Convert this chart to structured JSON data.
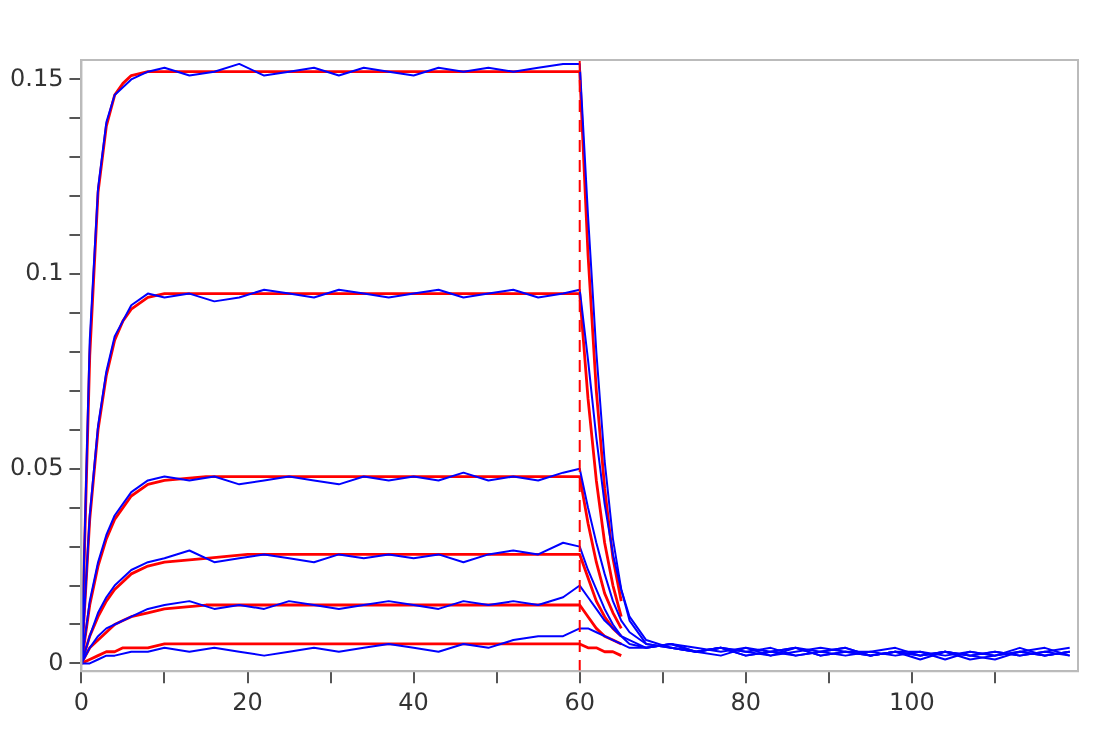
{
  "chart_data": {
    "type": "line",
    "xlim": [
      0,
      120
    ],
    "ylim": [
      -0.002,
      0.155
    ],
    "xticks": [
      0,
      {
        "value": 10,
        "label": null
      },
      20,
      {
        "value": 30,
        "label": null
      },
      40,
      {
        "value": 50,
        "label": null
      },
      60,
      {
        "value": 70,
        "label": null
      },
      80,
      {
        "value": 90,
        "label": null
      },
      100,
      {
        "value": 110,
        "label": null
      }
    ],
    "yticks": [
      0,
      {
        "value": 0.01,
        "label": null
      },
      {
        "value": 0.02,
        "label": null
      },
      {
        "value": 0.03,
        "label": null
      },
      {
        "value": 0.04,
        "label": null
      },
      0.05,
      {
        "value": 0.06,
        "label": null
      },
      {
        "value": 0.07,
        "label": null
      },
      {
        "value": 0.08,
        "label": null
      },
      {
        "value": 0.09,
        "label": null
      },
      0.1,
      {
        "value": 0.11,
        "label": null
      },
      {
        "value": 0.12,
        "label": null
      },
      {
        "value": 0.13,
        "label": null
      },
      {
        "value": 0.14,
        "label": null
      },
      0.15
    ],
    "grid": false,
    "legend": false,
    "marker": "none",
    "ref_lines": [
      {
        "axis": "x",
        "value": 60,
        "color": "#ff0000",
        "line_style": "dashed"
      }
    ],
    "series": [
      {
        "color": "#0000ff",
        "x": [
          0,
          1,
          2,
          3,
          4,
          6,
          8,
          10,
          13,
          16,
          19,
          22,
          25,
          28,
          31,
          34,
          37,
          40,
          43,
          46,
          49,
          52,
          55,
          58,
          60,
          61,
          62,
          63,
          64,
          65,
          66,
          68,
          71,
          74,
          77,
          80,
          83,
          86,
          89,
          92,
          95,
          98,
          101,
          104,
          107,
          110,
          113,
          116,
          119
        ],
        "values": [
          0,
          0.083,
          0.122,
          0.139,
          0.146,
          0.15,
          0.152,
          0.153,
          0.151,
          0.152,
          0.154,
          0.151,
          0.152,
          0.153,
          0.151,
          0.153,
          0.152,
          0.151,
          0.153,
          0.152,
          0.153,
          0.152,
          0.153,
          0.154,
          0.154,
          0.115,
          0.08,
          0.052,
          0.032,
          0.019,
          0.011,
          0.005,
          0.004,
          0.003,
          0.004,
          0.002,
          0.003,
          0.004,
          0.002,
          0.003,
          0.002,
          0.003,
          0.001,
          0.003,
          0.002,
          0.001,
          0.003,
          0.002,
          0.003
        ]
      },
      {
        "color": "#0000ff",
        "x": [
          0,
          1,
          2,
          3,
          4,
          6,
          8,
          10,
          13,
          16,
          19,
          22,
          25,
          28,
          31,
          34,
          37,
          40,
          43,
          46,
          49,
          52,
          55,
          58,
          60,
          61,
          62,
          63,
          64,
          65,
          66,
          68,
          71,
          74,
          77,
          80,
          83,
          86,
          89,
          92,
          95,
          98,
          101,
          104,
          107,
          110,
          113,
          116,
          119
        ],
        "values": [
          0,
          0.038,
          0.061,
          0.075,
          0.084,
          0.092,
          0.095,
          0.094,
          0.095,
          0.093,
          0.094,
          0.096,
          0.095,
          0.094,
          0.096,
          0.095,
          0.094,
          0.095,
          0.096,
          0.094,
          0.095,
          0.096,
          0.094,
          0.095,
          0.096,
          0.078,
          0.058,
          0.041,
          0.028,
          0.019,
          0.012,
          0.006,
          0.004,
          0.003,
          0.002,
          0.004,
          0.003,
          0.002,
          0.003,
          0.004,
          0.002,
          0.003,
          0.002,
          0.003,
          0.001,
          0.002,
          0.004,
          0.002,
          0.003
        ]
      },
      {
        "color": "#0000ff",
        "x": [
          0,
          1,
          2,
          3,
          4,
          6,
          8,
          10,
          13,
          16,
          19,
          22,
          25,
          28,
          31,
          34,
          37,
          40,
          43,
          46,
          49,
          52,
          55,
          58,
          60,
          61,
          62,
          63,
          64,
          65,
          66,
          68,
          71,
          74,
          77,
          80,
          83,
          86,
          89,
          92,
          95,
          98,
          101,
          104,
          107,
          110,
          113,
          116,
          119
        ],
        "values": [
          0,
          0.016,
          0.026,
          0.033,
          0.038,
          0.044,
          0.047,
          0.048,
          0.047,
          0.048,
          0.046,
          0.047,
          0.048,
          0.047,
          0.046,
          0.048,
          0.047,
          0.048,
          0.047,
          0.049,
          0.047,
          0.048,
          0.047,
          0.049,
          0.05,
          0.04,
          0.031,
          0.023,
          0.016,
          0.011,
          0.008,
          0.005,
          0.004,
          0.003,
          0.004,
          0.002,
          0.003,
          0.004,
          0.002,
          0.003,
          0.003,
          0.002,
          0.003,
          0.001,
          0.003,
          0.002,
          0.003,
          0.004,
          0.002
        ]
      },
      {
        "color": "#0000ff",
        "x": [
          0,
          1,
          2,
          3,
          4,
          6,
          8,
          10,
          13,
          16,
          19,
          22,
          25,
          28,
          31,
          34,
          37,
          40,
          43,
          46,
          49,
          52,
          55,
          58,
          60,
          61,
          62,
          63,
          64,
          65,
          66,
          68,
          71,
          74,
          77,
          80,
          83,
          86,
          89,
          92,
          95,
          98,
          101,
          104,
          107,
          110,
          113,
          116,
          119
        ],
        "values": [
          0,
          0.007,
          0.013,
          0.017,
          0.02,
          0.024,
          0.026,
          0.027,
          0.029,
          0.026,
          0.027,
          0.028,
          0.027,
          0.026,
          0.028,
          0.027,
          0.028,
          0.027,
          0.028,
          0.026,
          0.028,
          0.029,
          0.028,
          0.031,
          0.03,
          0.024,
          0.019,
          0.014,
          0.01,
          0.007,
          0.005,
          0.004,
          0.005,
          0.004,
          0.003,
          0.004,
          0.002,
          0.003,
          0.004,
          0.003,
          0.002,
          0.003,
          0.002,
          0.003,
          0.002,
          0.003,
          0.002,
          0.003,
          0.004
        ]
      },
      {
        "color": "#0000ff",
        "x": [
          0,
          1,
          2,
          3,
          4,
          6,
          8,
          10,
          13,
          16,
          19,
          22,
          25,
          28,
          31,
          34,
          37,
          40,
          43,
          46,
          49,
          52,
          55,
          58,
          60,
          61,
          62,
          63,
          64,
          65,
          66,
          68,
          71,
          74,
          77,
          80,
          83,
          86,
          89,
          92,
          95,
          98,
          101,
          104,
          107,
          110,
          113,
          116,
          119
        ],
        "values": [
          0,
          0.004,
          0.007,
          0.009,
          0.01,
          0.012,
          0.014,
          0.015,
          0.016,
          0.014,
          0.015,
          0.014,
          0.016,
          0.015,
          0.014,
          0.015,
          0.016,
          0.015,
          0.014,
          0.016,
          0.015,
          0.016,
          0.015,
          0.017,
          0.02,
          0.017,
          0.014,
          0.011,
          0.009,
          0.007,
          0.006,
          0.004,
          0.005,
          0.003,
          0.004,
          0.003,
          0.004,
          0.002,
          0.003,
          0.004,
          0.002,
          0.003,
          0.003,
          0.002,
          0.003,
          0.002,
          0.003,
          0.002,
          0.003
        ]
      },
      {
        "color": "#0000ff",
        "x": [
          0,
          1,
          2,
          3,
          4,
          6,
          8,
          10,
          13,
          16,
          19,
          22,
          25,
          28,
          31,
          34,
          37,
          40,
          43,
          46,
          49,
          52,
          55,
          58,
          60,
          61,
          62,
          63,
          64,
          65,
          66,
          68,
          71,
          74,
          77,
          80,
          83,
          86,
          89,
          92,
          95,
          98,
          101,
          104,
          107,
          110,
          113,
          116,
          119
        ],
        "values": [
          0,
          0.0,
          0.001,
          0.002,
          0.002,
          0.003,
          0.003,
          0.004,
          0.003,
          0.004,
          0.003,
          0.002,
          0.003,
          0.004,
          0.003,
          0.004,
          0.005,
          0.004,
          0.003,
          0.005,
          0.004,
          0.006,
          0.007,
          0.007,
          0.009,
          0.009,
          0.008,
          0.007,
          0.006,
          0.005,
          0.004,
          0.004,
          0.005,
          0.003,
          0.004,
          0.003,
          0.002,
          0.004,
          0.003,
          0.002,
          0.003,
          0.004,
          0.002,
          0.003,
          0.002,
          0.003,
          0.002,
          0.003,
          0.002
        ]
      },
      {
        "color": "#ff0000",
        "x": [
          0,
          1,
          2,
          3,
          4,
          5,
          6,
          8,
          10,
          15,
          20,
          30,
          40,
          50,
          60,
          61,
          62,
          63,
          64,
          65
        ],
        "values": [
          0,
          0.079,
          0.121,
          0.138,
          0.146,
          0.149,
          0.151,
          0.152,
          0.152,
          0.152,
          0.152,
          0.152,
          0.152,
          0.152,
          0.152,
          0.105,
          0.07,
          0.045,
          0.027,
          0.016
        ]
      },
      {
        "color": "#ff0000",
        "x": [
          0,
          1,
          2,
          3,
          4,
          5,
          6,
          8,
          10,
          15,
          20,
          30,
          40,
          50,
          60,
          61,
          62,
          63,
          64,
          65
        ],
        "values": [
          0,
          0.037,
          0.06,
          0.074,
          0.083,
          0.088,
          0.091,
          0.094,
          0.095,
          0.095,
          0.095,
          0.095,
          0.095,
          0.095,
          0.095,
          0.068,
          0.047,
          0.031,
          0.02,
          0.012
        ]
      },
      {
        "color": "#ff0000",
        "x": [
          0,
          1,
          2,
          3,
          4,
          5,
          6,
          8,
          10,
          15,
          20,
          30,
          40,
          50,
          60,
          61,
          62,
          63,
          64,
          65
        ],
        "values": [
          0,
          0.015,
          0.025,
          0.032,
          0.037,
          0.04,
          0.043,
          0.046,
          0.047,
          0.048,
          0.048,
          0.048,
          0.048,
          0.048,
          0.048,
          0.036,
          0.026,
          0.018,
          0.013,
          0.009
        ]
      },
      {
        "color": "#ff0000",
        "x": [
          0,
          1,
          2,
          3,
          4,
          5,
          6,
          8,
          10,
          15,
          20,
          30,
          40,
          50,
          60,
          61,
          62,
          63,
          64,
          65
        ],
        "values": [
          0,
          0.007,
          0.012,
          0.016,
          0.019,
          0.021,
          0.023,
          0.025,
          0.026,
          0.027,
          0.028,
          0.028,
          0.028,
          0.028,
          0.028,
          0.022,
          0.016,
          0.012,
          0.009,
          0.007
        ]
      },
      {
        "color": "#ff0000",
        "x": [
          0,
          1,
          2,
          3,
          4,
          5,
          6,
          8,
          10,
          15,
          20,
          30,
          40,
          50,
          60,
          61,
          62,
          63,
          64,
          65
        ],
        "values": [
          0,
          0.004,
          0.006,
          0.008,
          0.01,
          0.011,
          0.012,
          0.013,
          0.014,
          0.015,
          0.015,
          0.015,
          0.015,
          0.015,
          0.015,
          0.012,
          0.009,
          0.007,
          0.006,
          0.005
        ]
      },
      {
        "color": "#ff0000",
        "x": [
          0,
          1,
          2,
          3,
          4,
          5,
          6,
          8,
          10,
          15,
          20,
          30,
          40,
          50,
          60,
          61,
          62,
          63,
          64,
          65
        ],
        "values": [
          0,
          0.001,
          0.002,
          0.003,
          0.003,
          0.004,
          0.004,
          0.004,
          0.005,
          0.005,
          0.005,
          0.005,
          0.005,
          0.005,
          0.005,
          0.004,
          0.004,
          0.003,
          0.003,
          0.002
        ]
      }
    ]
  }
}
